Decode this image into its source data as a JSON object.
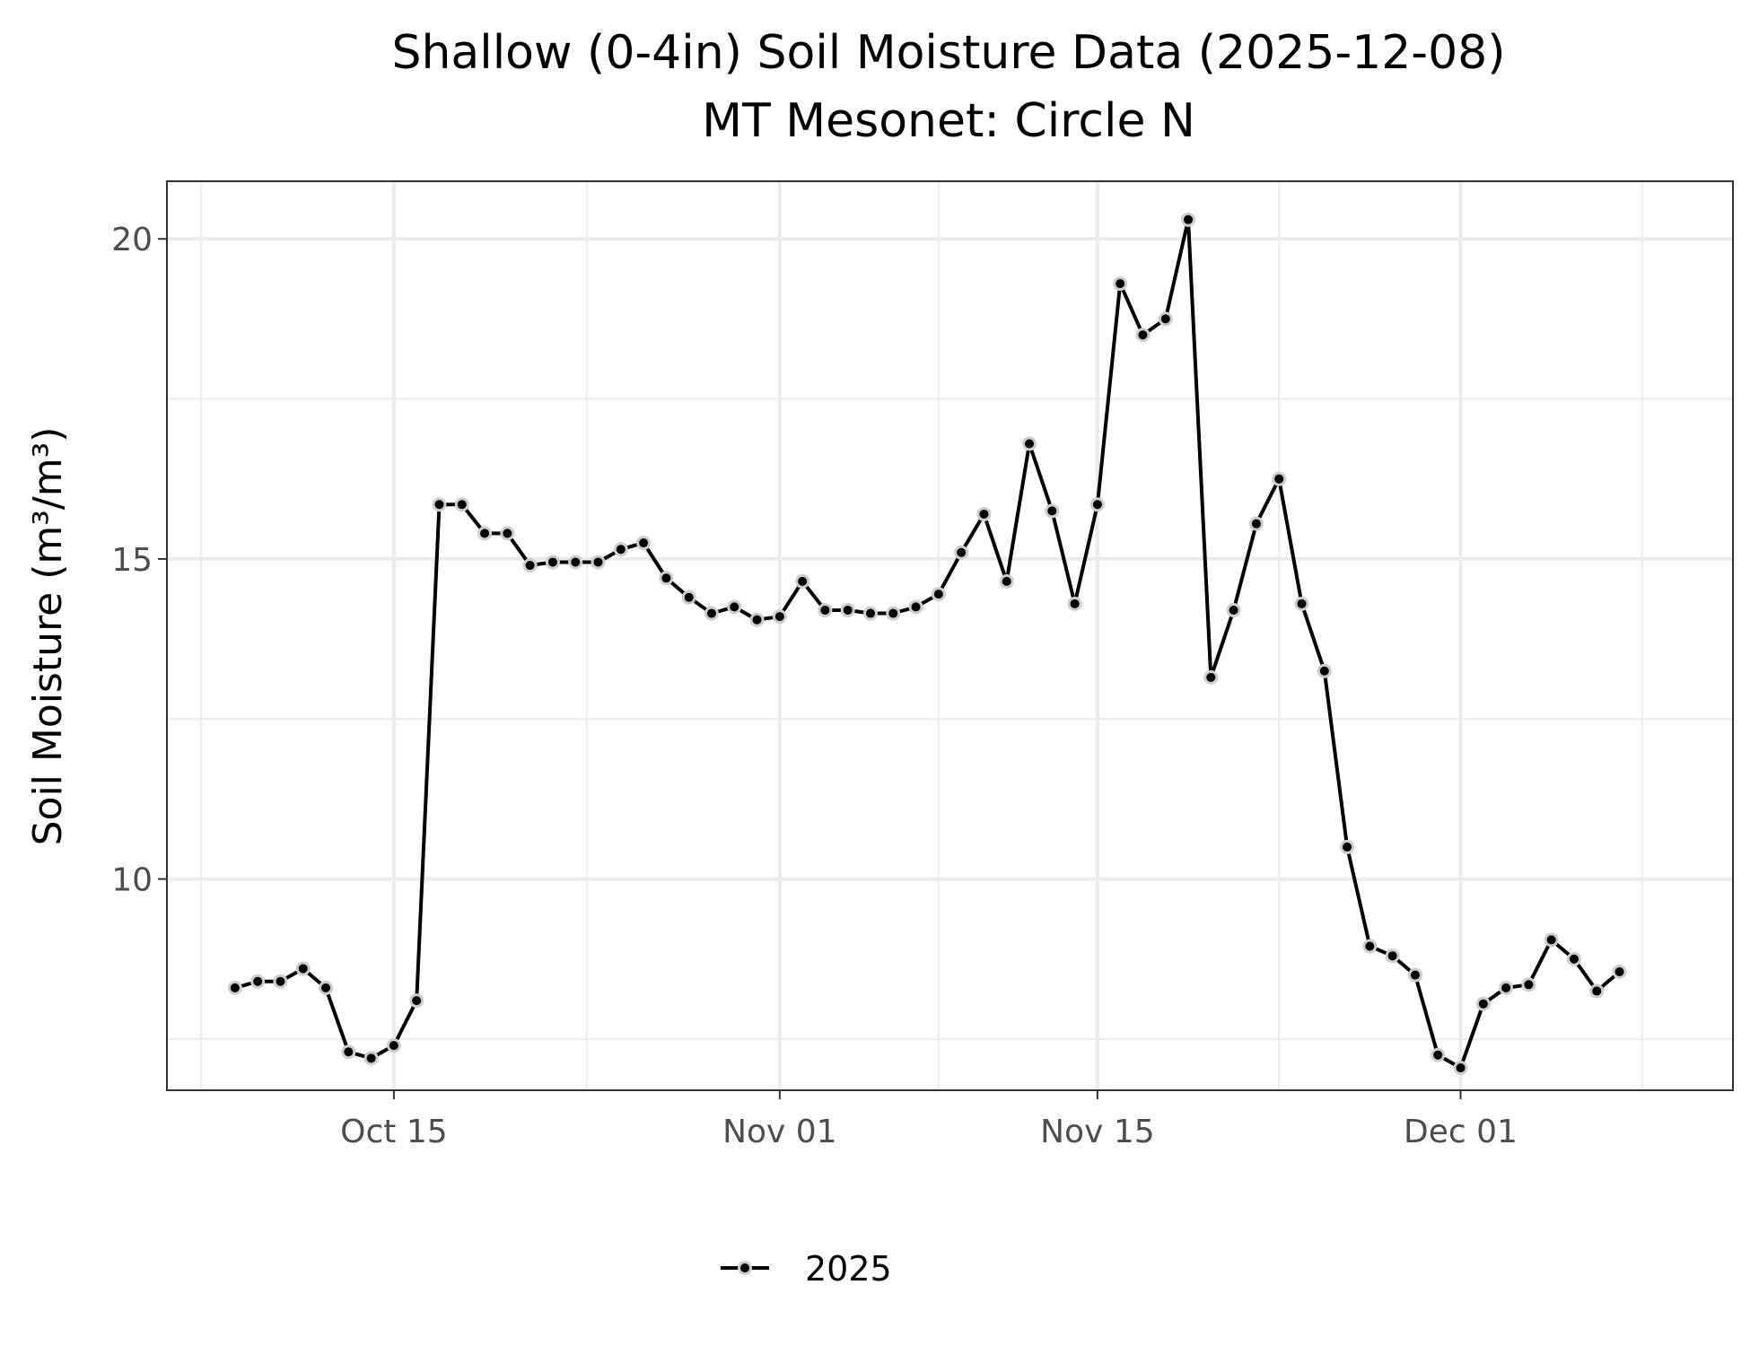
{
  "title_line1": "Shallow (0-4in) Soil Moisture Data (2025-12-08)",
  "title_line2": "MT Mesonet: Circle N",
  "chart_data": {
    "type": "line",
    "ylabel": "Soil Moisture (m³/m³)",
    "xlabel": "",
    "ylim": [
      6.7,
      20.9
    ],
    "xlim": [
      "2025-10-05",
      "2025-12-13"
    ],
    "yticks": [
      10,
      15,
      20
    ],
    "xticks": [
      {
        "date": "2025-10-15",
        "label": "Oct 15"
      },
      {
        "date": "2025-11-01",
        "label": "Nov 01"
      },
      {
        "date": "2025-11-15",
        "label": "Nov 15"
      },
      {
        "date": "2025-12-01",
        "label": "Dec 01"
      }
    ],
    "grid": true,
    "legend_position": "bottom",
    "colors": {
      "line": "#000000",
      "halo": "#cccccc",
      "grid": "#ebebeb",
      "border": "#333333"
    },
    "series": [
      {
        "name": "2025",
        "x": [
          "2025-10-08",
          "2025-10-09",
          "2025-10-10",
          "2025-10-11",
          "2025-10-12",
          "2025-10-13",
          "2025-10-14",
          "2025-10-15",
          "2025-10-16",
          "2025-10-17",
          "2025-10-18",
          "2025-10-19",
          "2025-10-20",
          "2025-10-21",
          "2025-10-22",
          "2025-10-23",
          "2025-10-24",
          "2025-10-25",
          "2025-10-26",
          "2025-10-27",
          "2025-10-28",
          "2025-10-29",
          "2025-10-30",
          "2025-10-31",
          "2025-11-01",
          "2025-11-02",
          "2025-11-03",
          "2025-11-04",
          "2025-11-05",
          "2025-11-06",
          "2025-11-07",
          "2025-11-08",
          "2025-11-09",
          "2025-11-10",
          "2025-11-11",
          "2025-11-12",
          "2025-11-13",
          "2025-11-14",
          "2025-11-15",
          "2025-11-16",
          "2025-11-17",
          "2025-11-18",
          "2025-11-19",
          "2025-11-20",
          "2025-11-21",
          "2025-11-22",
          "2025-11-23",
          "2025-11-24",
          "2025-11-25",
          "2025-11-26",
          "2025-11-27",
          "2025-11-28",
          "2025-11-29",
          "2025-11-30",
          "2025-12-01",
          "2025-12-02",
          "2025-12-03",
          "2025-12-04",
          "2025-12-05",
          "2025-12-06",
          "2025-12-07",
          "2025-12-08"
        ],
        "values": [
          8.3,
          8.4,
          8.4,
          8.6,
          8.3,
          7.3,
          7.2,
          7.4,
          8.1,
          15.85,
          15.85,
          15.4,
          15.4,
          14.9,
          14.95,
          14.95,
          14.95,
          15.15,
          15.25,
          14.7,
          14.4,
          14.15,
          14.25,
          14.05,
          14.1,
          14.65,
          14.2,
          14.2,
          14.15,
          14.15,
          14.25,
          14.45,
          15.1,
          15.7,
          14.65,
          16.8,
          15.75,
          14.3,
          15.85,
          19.3,
          18.5,
          18.75,
          20.3,
          13.15,
          14.2,
          15.55,
          16.25,
          14.3,
          13.25,
          10.5,
          8.95,
          8.8,
          8.5,
          7.25,
          7.05,
          8.05,
          8.3,
          8.35,
          9.05,
          8.75,
          8.25,
          8.55
        ]
      }
    ]
  }
}
